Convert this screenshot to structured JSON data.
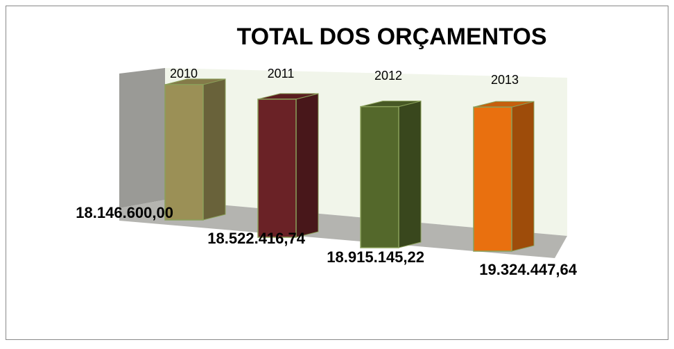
{
  "chart_data": {
    "type": "bar",
    "title": "TOTAL  DOS ORÇAMENTOS",
    "categories": [
      "2010",
      "2011",
      "2012",
      "2013"
    ],
    "values": [
      18146600.0,
      18522416.74,
      18915145.22,
      19324447.64
    ],
    "value_labels": [
      "18.146.600,00",
      "18.522.416,74",
      "18.915.145,22",
      "19.324.447,64"
    ],
    "colors": [
      "#9b9056",
      "#6a2226",
      "#54682b",
      "#e9700f"
    ],
    "ylim": [
      0,
      20000000
    ]
  }
}
